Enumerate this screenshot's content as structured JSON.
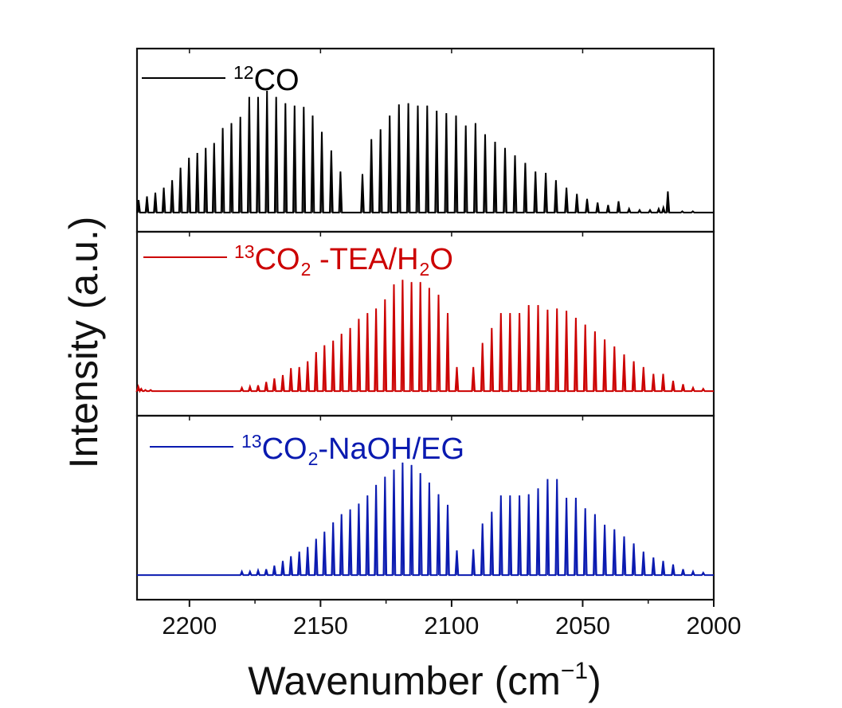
{
  "chart_data": {
    "type": "line",
    "layout": "stacked-panels",
    "xlabel": "Wavenumber (cm⁻¹)",
    "xlabel_parts": {
      "main": "Wavenumber (cm",
      "sup": "−1",
      "close": ")"
    },
    "ylabel": "Intensity (a.u.)",
    "xlim": [
      2220,
      2000
    ],
    "x_reversed": true,
    "xticks": [
      2200,
      2150,
      2100,
      2050,
      2000
    ],
    "xtick_labels": [
      "2200",
      "2150",
      "2100",
      "2050",
      "2000"
    ],
    "y_ticks_shown": false,
    "legend_placement": "top-left of each panel",
    "panels": [
      {
        "series_name": "12CO",
        "legend": [
          {
            "text": "12",
            "type": "sup"
          },
          {
            "text": "CO",
            "type": "normal"
          }
        ],
        "color": "#000000",
        "baseline": 0.02,
        "ylim": [
          0,
          1.05
        ],
        "peaks": [
          {
            "x": 2219.4,
            "y": 0.12
          },
          {
            "x": 2216.2,
            "y": 0.15
          },
          {
            "x": 2213.0,
            "y": 0.18
          },
          {
            "x": 2209.8,
            "y": 0.22
          },
          {
            "x": 2206.6,
            "y": 0.28
          },
          {
            "x": 2203.4,
            "y": 0.38
          },
          {
            "x": 2200.2,
            "y": 0.46
          },
          {
            "x": 2197.0,
            "y": 0.5
          },
          {
            "x": 2193.8,
            "y": 0.54
          },
          {
            "x": 2190.6,
            "y": 0.58
          },
          {
            "x": 2187.3,
            "y": 0.7
          },
          {
            "x": 2184.0,
            "y": 0.74
          },
          {
            "x": 2180.6,
            "y": 0.79
          },
          {
            "x": 2177.2,
            "y": 0.95
          },
          {
            "x": 2173.8,
            "y": 0.95
          },
          {
            "x": 2170.4,
            "y": 1.0
          },
          {
            "x": 2166.9,
            "y": 0.95
          },
          {
            "x": 2163.4,
            "y": 0.9
          },
          {
            "x": 2159.9,
            "y": 0.88
          },
          {
            "x": 2156.4,
            "y": 0.87
          },
          {
            "x": 2153.0,
            "y": 0.8
          },
          {
            "x": 2149.5,
            "y": 0.67
          },
          {
            "x": 2145.9,
            "y": 0.52
          },
          {
            "x": 2142.4,
            "y": 0.35
          },
          {
            "x": 2134.0,
            "y": 0.33
          },
          {
            "x": 2130.6,
            "y": 0.61
          },
          {
            "x": 2127.1,
            "y": 0.69
          },
          {
            "x": 2123.6,
            "y": 0.8
          },
          {
            "x": 2120.1,
            "y": 0.89
          },
          {
            "x": 2116.5,
            "y": 0.9
          },
          {
            "x": 2112.9,
            "y": 0.88
          },
          {
            "x": 2109.3,
            "y": 0.88
          },
          {
            "x": 2105.7,
            "y": 0.84
          },
          {
            "x": 2102.0,
            "y": 0.82
          },
          {
            "x": 2098.3,
            "y": 0.8
          },
          {
            "x": 2094.6,
            "y": 0.72
          },
          {
            "x": 2090.9,
            "y": 0.74
          },
          {
            "x": 2087.2,
            "y": 0.65
          },
          {
            "x": 2083.4,
            "y": 0.59
          },
          {
            "x": 2079.6,
            "y": 0.54
          },
          {
            "x": 2075.8,
            "y": 0.48
          },
          {
            "x": 2071.9,
            "y": 0.42
          },
          {
            "x": 2068.0,
            "y": 0.35
          },
          {
            "x": 2064.1,
            "y": 0.34
          },
          {
            "x": 2060.2,
            "y": 0.28
          },
          {
            "x": 2056.2,
            "y": 0.22
          },
          {
            "x": 2052.2,
            "y": 0.17
          },
          {
            "x": 2048.3,
            "y": 0.13
          },
          {
            "x": 2044.3,
            "y": 0.1
          },
          {
            "x": 2040.3,
            "y": 0.08
          },
          {
            "x": 2036.3,
            "y": 0.11
          },
          {
            "x": 2032.3,
            "y": 0.05
          },
          {
            "x": 2028.3,
            "y": 0.04
          },
          {
            "x": 2024.3,
            "y": 0.04
          },
          {
            "x": 2021.0,
            "y": 0.05
          },
          {
            "x": 2019.2,
            "y": 0.06
          },
          {
            "x": 2017.5,
            "y": 0.19
          },
          {
            "x": 2012.0,
            "y": 0.03
          },
          {
            "x": 2008.0,
            "y": 0.03
          }
        ]
      },
      {
        "series_name": "13CO2 -TEA/H2O",
        "legend": [
          {
            "text": "13",
            "type": "sup"
          },
          {
            "text": "CO",
            "type": "normal"
          },
          {
            "text": "2",
            "type": "sub"
          },
          {
            "text": " -TEA/H",
            "type": "normal"
          },
          {
            "text": "2",
            "type": "sub"
          },
          {
            "text": "O",
            "type": "normal"
          }
        ],
        "color": "#cc0000",
        "baseline": 0.02,
        "ylim": [
          0,
          1.05
        ],
        "peaks": [
          {
            "x": 2219.5,
            "y": 0.06
          },
          {
            "x": 2218.4,
            "y": 0.04
          },
          {
            "x": 2216.8,
            "y": 0.03
          },
          {
            "x": 2214.8,
            "y": 0.03
          },
          {
            "x": 2180.0,
            "y": 0.05
          },
          {
            "x": 2176.9,
            "y": 0.06
          },
          {
            "x": 2173.8,
            "y": 0.07
          },
          {
            "x": 2170.7,
            "y": 0.1
          },
          {
            "x": 2167.6,
            "y": 0.13
          },
          {
            "x": 2164.4,
            "y": 0.16
          },
          {
            "x": 2161.3,
            "y": 0.22
          },
          {
            "x": 2158.1,
            "y": 0.23
          },
          {
            "x": 2154.9,
            "y": 0.28
          },
          {
            "x": 2151.7,
            "y": 0.36
          },
          {
            "x": 2148.5,
            "y": 0.42
          },
          {
            "x": 2145.2,
            "y": 0.46
          },
          {
            "x": 2142.0,
            "y": 0.52
          },
          {
            "x": 2138.7,
            "y": 0.57
          },
          {
            "x": 2135.4,
            "y": 0.65
          },
          {
            "x": 2132.1,
            "y": 0.7
          },
          {
            "x": 2128.8,
            "y": 0.74
          },
          {
            "x": 2125.4,
            "y": 0.82
          },
          {
            "x": 2122.0,
            "y": 0.95
          },
          {
            "x": 2118.7,
            "y": 0.99
          },
          {
            "x": 2115.3,
            "y": 0.97
          },
          {
            "x": 2111.9,
            "y": 0.97
          },
          {
            "x": 2108.5,
            "y": 0.92
          },
          {
            "x": 2105.0,
            "y": 0.86
          },
          {
            "x": 2101.5,
            "y": 0.7
          },
          {
            "x": 2098.0,
            "y": 0.23
          },
          {
            "x": 2091.7,
            "y": 0.23
          },
          {
            "x": 2088.2,
            "y": 0.44
          },
          {
            "x": 2084.7,
            "y": 0.57
          },
          {
            "x": 2081.2,
            "y": 0.7
          },
          {
            "x": 2077.7,
            "y": 0.7
          },
          {
            "x": 2074.1,
            "y": 0.7
          },
          {
            "x": 2070.6,
            "y": 0.77
          },
          {
            "x": 2067.0,
            "y": 0.77
          },
          {
            "x": 2063.4,
            "y": 0.73
          },
          {
            "x": 2059.8,
            "y": 0.74
          },
          {
            "x": 2056.2,
            "y": 0.72
          },
          {
            "x": 2052.6,
            "y": 0.66
          },
          {
            "x": 2049.0,
            "y": 0.6
          },
          {
            "x": 2045.3,
            "y": 0.54
          },
          {
            "x": 2041.6,
            "y": 0.47
          },
          {
            "x": 2037.9,
            "y": 0.41
          },
          {
            "x": 2034.2,
            "y": 0.34
          },
          {
            "x": 2030.5,
            "y": 0.28
          },
          {
            "x": 2026.8,
            "y": 0.23
          },
          {
            "x": 2023.0,
            "y": 0.17
          },
          {
            "x": 2019.3,
            "y": 0.17
          },
          {
            "x": 2015.5,
            "y": 0.11
          },
          {
            "x": 2011.7,
            "y": 0.08
          },
          {
            "x": 2007.9,
            "y": 0.05
          },
          {
            "x": 2004.0,
            "y": 0.04
          }
        ]
      },
      {
        "series_name": "13CO2-NaOH/EG",
        "legend": [
          {
            "text": "13",
            "type": "sup"
          },
          {
            "text": "CO",
            "type": "normal"
          },
          {
            "text": "2",
            "type": "sub"
          },
          {
            "text": "-NaOH/EG",
            "type": "normal"
          }
        ],
        "color": "#0a1ab0",
        "baseline": 0.02,
        "ylim": [
          0,
          1.05
        ],
        "peaks": [
          {
            "x": 2217.0,
            "y": 0.02
          },
          {
            "x": 2205.0,
            "y": 0.02
          },
          {
            "x": 2190.0,
            "y": 0.02
          },
          {
            "x": 2180.0,
            "y": 0.05
          },
          {
            "x": 2176.9,
            "y": 0.05
          },
          {
            "x": 2173.8,
            "y": 0.06
          },
          {
            "x": 2170.7,
            "y": 0.07
          },
          {
            "x": 2167.6,
            "y": 0.1
          },
          {
            "x": 2164.4,
            "y": 0.14
          },
          {
            "x": 2161.3,
            "y": 0.18
          },
          {
            "x": 2158.1,
            "y": 0.22
          },
          {
            "x": 2154.9,
            "y": 0.26
          },
          {
            "x": 2151.7,
            "y": 0.33
          },
          {
            "x": 2148.5,
            "y": 0.39
          },
          {
            "x": 2145.2,
            "y": 0.47
          },
          {
            "x": 2142.0,
            "y": 0.54
          },
          {
            "x": 2138.7,
            "y": 0.58
          },
          {
            "x": 2135.4,
            "y": 0.63
          },
          {
            "x": 2132.1,
            "y": 0.7
          },
          {
            "x": 2128.8,
            "y": 0.79
          },
          {
            "x": 2125.4,
            "y": 0.86
          },
          {
            "x": 2122.0,
            "y": 0.92
          },
          {
            "x": 2118.7,
            "y": 0.98
          },
          {
            "x": 2115.3,
            "y": 0.96
          },
          {
            "x": 2111.9,
            "y": 0.89
          },
          {
            "x": 2108.5,
            "y": 0.81
          },
          {
            "x": 2105.0,
            "y": 0.71
          },
          {
            "x": 2101.5,
            "y": 0.62
          },
          {
            "x": 2098.0,
            "y": 0.23
          },
          {
            "x": 2091.7,
            "y": 0.24
          },
          {
            "x": 2088.2,
            "y": 0.46
          },
          {
            "x": 2084.7,
            "y": 0.56
          },
          {
            "x": 2081.2,
            "y": 0.7
          },
          {
            "x": 2077.7,
            "y": 0.7
          },
          {
            "x": 2074.1,
            "y": 0.7
          },
          {
            "x": 2070.6,
            "y": 0.71
          },
          {
            "x": 2067.0,
            "y": 0.76
          },
          {
            "x": 2063.4,
            "y": 0.84
          },
          {
            "x": 2059.8,
            "y": 0.84
          },
          {
            "x": 2056.2,
            "y": 0.68
          },
          {
            "x": 2052.6,
            "y": 0.68
          },
          {
            "x": 2049.0,
            "y": 0.59
          },
          {
            "x": 2045.3,
            "y": 0.54
          },
          {
            "x": 2041.6,
            "y": 0.45
          },
          {
            "x": 2037.9,
            "y": 0.41
          },
          {
            "x": 2034.2,
            "y": 0.35
          },
          {
            "x": 2030.5,
            "y": 0.29
          },
          {
            "x": 2026.8,
            "y": 0.22
          },
          {
            "x": 2023.0,
            "y": 0.17
          },
          {
            "x": 2019.3,
            "y": 0.14
          },
          {
            "x": 2015.5,
            "y": 0.11
          },
          {
            "x": 2011.7,
            "y": 0.07
          },
          {
            "x": 2007.9,
            "y": 0.05
          },
          {
            "x": 2004.0,
            "y": 0.04
          }
        ]
      }
    ]
  }
}
